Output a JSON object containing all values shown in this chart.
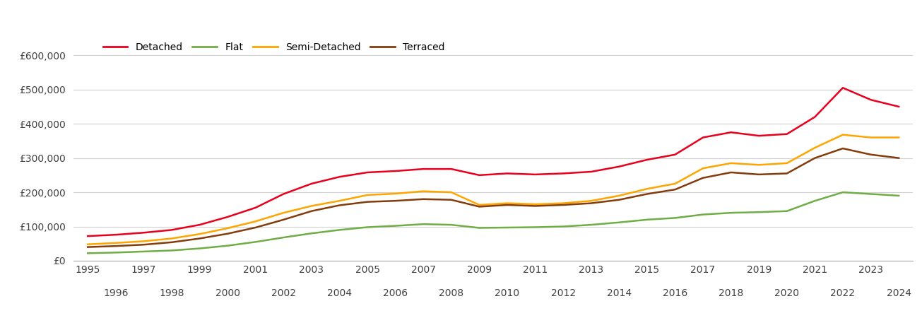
{
  "series": {
    "Detached": {
      "color": "#e8001c",
      "years": [
        1995,
        1996,
        1997,
        1998,
        1999,
        2000,
        2001,
        2002,
        2003,
        2004,
        2005,
        2006,
        2007,
        2008,
        2009,
        2010,
        2011,
        2012,
        2013,
        2014,
        2015,
        2016,
        2017,
        2018,
        2019,
        2020,
        2021,
        2022,
        2023,
        2024
      ],
      "values": [
        72000,
        76000,
        82000,
        90000,
        105000,
        128000,
        155000,
        195000,
        225000,
        245000,
        258000,
        262000,
        268000,
        268000,
        250000,
        255000,
        252000,
        255000,
        260000,
        275000,
        295000,
        310000,
        360000,
        375000,
        365000,
        370000,
        420000,
        505000,
        470000,
        450000
      ]
    },
    "Flat": {
      "color": "#70ad47",
      "years": [
        1995,
        1996,
        1997,
        1998,
        1999,
        2000,
        2001,
        2002,
        2003,
        2004,
        2005,
        2006,
        2007,
        2008,
        2009,
        2010,
        2011,
        2012,
        2013,
        2014,
        2015,
        2016,
        2017,
        2018,
        2019,
        2020,
        2021,
        2022,
        2023,
        2024
      ],
      "values": [
        22000,
        24000,
        27000,
        30000,
        36000,
        44000,
        55000,
        68000,
        80000,
        90000,
        98000,
        102000,
        107000,
        105000,
        96000,
        97000,
        98000,
        100000,
        105000,
        112000,
        120000,
        125000,
        135000,
        140000,
        142000,
        145000,
        175000,
        200000,
        195000,
        190000
      ]
    },
    "Semi-Detached": {
      "color": "#ffa500",
      "years": [
        1995,
        1996,
        1997,
        1998,
        1999,
        2000,
        2001,
        2002,
        2003,
        2004,
        2005,
        2006,
        2007,
        2008,
        2009,
        2010,
        2011,
        2012,
        2013,
        2014,
        2015,
        2016,
        2017,
        2018,
        2019,
        2020,
        2021,
        2022,
        2023,
        2024
      ],
      "values": [
        48000,
        52000,
        57000,
        65000,
        78000,
        95000,
        115000,
        140000,
        160000,
        175000,
        192000,
        196000,
        203000,
        200000,
        163000,
        168000,
        165000,
        168000,
        175000,
        190000,
        210000,
        225000,
        270000,
        285000,
        280000,
        285000,
        330000,
        368000,
        360000,
        360000
      ]
    },
    "Terraced": {
      "color": "#843c0c",
      "years": [
        1995,
        1996,
        1997,
        1998,
        1999,
        2000,
        2001,
        2002,
        2003,
        2004,
        2005,
        2006,
        2007,
        2008,
        2009,
        2010,
        2011,
        2012,
        2013,
        2014,
        2015,
        2016,
        2017,
        2018,
        2019,
        2020,
        2021,
        2022,
        2023,
        2024
      ],
      "values": [
        40000,
        43000,
        47000,
        54000,
        65000,
        79000,
        97000,
        120000,
        145000,
        162000,
        172000,
        175000,
        180000,
        178000,
        158000,
        163000,
        160000,
        163000,
        168000,
        178000,
        195000,
        208000,
        242000,
        258000,
        252000,
        255000,
        300000,
        328000,
        310000,
        300000
      ]
    }
  },
  "ylim": [
    0,
    650000
  ],
  "yticks": [
    0,
    100000,
    200000,
    300000,
    400000,
    500000,
    600000
  ],
  "ytick_labels": [
    "£0",
    "£100,000",
    "£200,000",
    "£300,000",
    "£400,000",
    "£500,000",
    "£600,000"
  ],
  "xticks_row1": [
    1995,
    1997,
    1999,
    2001,
    2003,
    2005,
    2007,
    2009,
    2011,
    2013,
    2015,
    2017,
    2019,
    2021,
    2023
  ],
  "xticks_row2": [
    1996,
    1998,
    2000,
    2002,
    2004,
    2006,
    2008,
    2010,
    2012,
    2014,
    2016,
    2018,
    2020,
    2022,
    2024
  ],
  "legend_order": [
    "Detached",
    "Flat",
    "Semi-Detached",
    "Terraced"
  ],
  "background_color": "#ffffff",
  "grid_color": "#d0d0d0",
  "line_width": 1.8
}
